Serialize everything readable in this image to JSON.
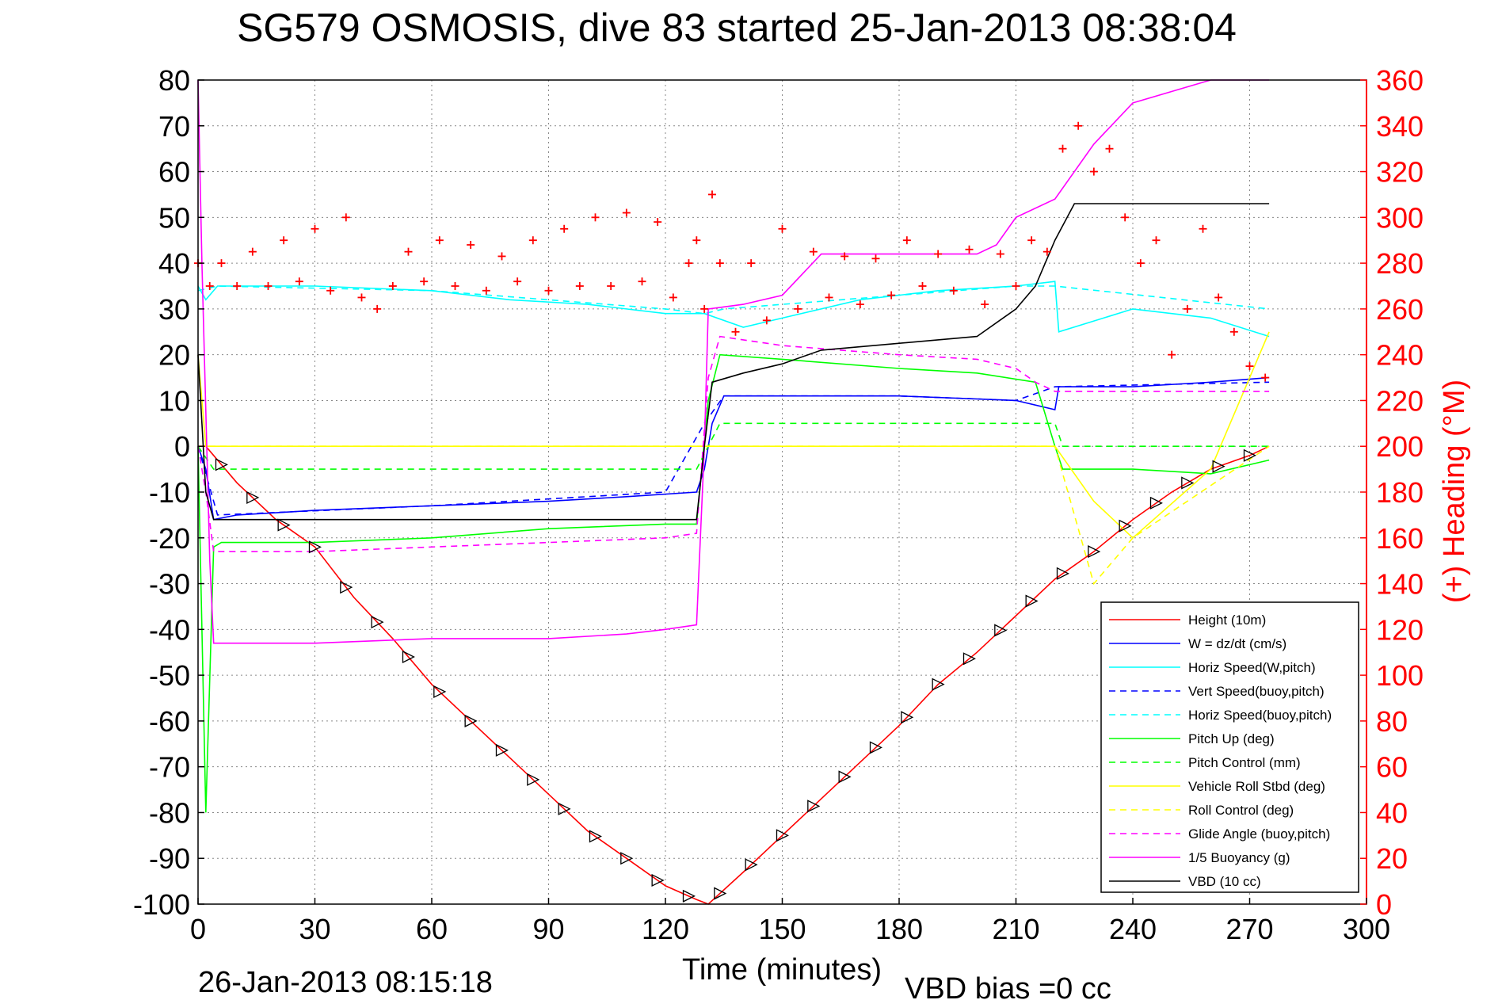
{
  "chart_data": {
    "type": "line",
    "title": "SG579 OSMOSIS, dive 83 started 25-Jan-2013 08:38:04",
    "xlabel": "Time (minutes)",
    "ylabel_right": "(+) Heading (°M)",
    "footer_left": "26-Jan-2013 08:15:18",
    "footer_right": "VBD bias =0 cc",
    "xlim": [
      0,
      300
    ],
    "ylim": [
      -100,
      80
    ],
    "ylim_right": [
      0,
      360
    ],
    "x_ticks": [
      0,
      30,
      60,
      90,
      120,
      150,
      180,
      210,
      240,
      270,
      300
    ],
    "y_ticks": [
      80,
      70,
      60,
      50,
      40,
      30,
      20,
      10,
      0,
      -10,
      -20,
      -30,
      -40,
      -50,
      -60,
      -70,
      -80,
      -90,
      -100
    ],
    "y_right_ticks": [
      360,
      340,
      320,
      300,
      280,
      260,
      240,
      220,
      200,
      180,
      160,
      140,
      120,
      100,
      80,
      60,
      40,
      20,
      0
    ],
    "grid": true,
    "legend_position": "bottom-right",
    "colors": {
      "height": "#ff0000",
      "w": "#0000ff",
      "horiz_w": "#00ffff",
      "vert_buoy": "#0000ff",
      "horiz_buoy": "#00ffff",
      "pitch": "#00ff00",
      "pitch_ctrl": "#00ff00",
      "roll": "#ffff00",
      "roll_ctrl": "#ffff00",
      "glide": "#ff00ff",
      "buoy": "#ff00ff",
      "vbd": "#000000",
      "heading": "#ff0000"
    },
    "series": [
      {
        "key": "height",
        "name": "Height (10m)",
        "style": "solid",
        "x": [
          0,
          2,
          10,
          20,
          30,
          40,
          50,
          60,
          70,
          80,
          90,
          100,
          110,
          120,
          128,
          131,
          140,
          150,
          160,
          170,
          180,
          190,
          200,
          210,
          220,
          230,
          240,
          250,
          260,
          270,
          275
        ],
        "y": [
          0,
          0,
          -8,
          -16,
          -22,
          -33,
          -42,
          -52,
          -60,
          -68,
          -76,
          -84,
          -90,
          -96,
          -99,
          -100,
          -93,
          -85,
          -77,
          -69,
          -61,
          -52,
          -45,
          -37,
          -29,
          -23,
          -16,
          -10,
          -5,
          -2,
          0
        ]
      },
      {
        "key": "w",
        "name": "W = dz/dt (cm/s)",
        "style": "solid",
        "x": [
          0,
          2,
          4,
          10,
          30,
          60,
          90,
          110,
          128,
          130,
          132,
          135,
          150,
          180,
          210,
          220,
          221,
          240,
          260,
          275
        ],
        "y": [
          0,
          -5,
          -16,
          -15,
          -14,
          -13,
          -12,
          -11,
          -10,
          -5,
          5,
          11,
          11,
          11,
          10,
          8,
          13,
          13,
          14,
          15
        ]
      },
      {
        "key": "horiz_w",
        "name": "Horiz Speed(W,pitch)",
        "style": "solid",
        "x": [
          0,
          2,
          5,
          30,
          60,
          80,
          100,
          120,
          130,
          140,
          150,
          170,
          190,
          210,
          220,
          221,
          240,
          260,
          275
        ],
        "y": [
          35,
          32,
          35,
          35,
          34,
          32,
          31,
          29,
          29,
          26,
          28,
          32,
          34,
          35,
          36,
          25,
          30,
          28,
          24
        ]
      },
      {
        "key": "vert_buoy",
        "name": "Vert Speed(buoy,pitch)",
        "style": "dashed",
        "x": [
          0,
          5,
          60,
          120,
          130,
          135,
          180,
          210,
          220,
          275
        ],
        "y": [
          0,
          -15,
          -13,
          -10,
          5,
          11,
          11,
          10,
          13,
          14
        ]
      },
      {
        "key": "horiz_buoy",
        "name": "Horiz Speed(buoy,pitch)",
        "style": "dashed",
        "x": [
          0,
          5,
          60,
          120,
          130,
          135,
          180,
          210,
          220,
          275
        ],
        "y": [
          34,
          35,
          34,
          30,
          29,
          30,
          33,
          35,
          35,
          30
        ]
      },
      {
        "key": "pitch",
        "name": "Pitch Up (deg)",
        "style": "solid",
        "x": [
          0,
          2,
          4,
          6,
          30,
          60,
          90,
          120,
          128,
          131,
          134,
          150,
          180,
          200,
          215,
          220,
          222,
          240,
          260,
          275
        ],
        "y": [
          0,
          -80,
          -22,
          -21,
          -21,
          -20,
          -18,
          -17,
          -17,
          10,
          20,
          19,
          17,
          16,
          14,
          0,
          -5,
          -5,
          -6,
          -3
        ]
      },
      {
        "key": "pitch_ctrl",
        "name": "Pitch Control (mm)",
        "style": "dashed",
        "x": [
          0,
          4,
          128,
          131,
          134,
          220,
          222,
          275
        ],
        "y": [
          0,
          -5,
          -5,
          0,
          5,
          5,
          0,
          0
        ]
      },
      {
        "key": "roll",
        "name": "Vehicle Roll Stbd (deg)",
        "style": "solid",
        "x": [
          0,
          2,
          30,
          60,
          90,
          120,
          130,
          131,
          160,
          190,
          220,
          230,
          240,
          260,
          275
        ],
        "y": [
          20,
          0,
          0,
          0,
          0,
          0,
          0,
          0,
          0,
          0,
          0,
          -12,
          -20,
          -5,
          25
        ]
      },
      {
        "key": "roll_ctrl",
        "name": "Roll Control (deg)",
        "style": "dashed",
        "x": [
          0,
          2,
          30,
          60,
          90,
          120,
          130,
          160,
          190,
          220,
          230,
          240,
          275
        ],
        "y": [
          0,
          0,
          0,
          0,
          0,
          0,
          0,
          0,
          0,
          0,
          -30,
          -20,
          0
        ]
      },
      {
        "key": "glide",
        "name": "Glide Angle (buoy,pitch)",
        "style": "dashed",
        "x": [
          0,
          2,
          4,
          30,
          60,
          90,
          120,
          128,
          131,
          134,
          150,
          180,
          200,
          210,
          215,
          220,
          240,
          275
        ],
        "y": [
          0,
          -10,
          -23,
          -23,
          -22,
          -21,
          -20,
          -19,
          15,
          24,
          22,
          20,
          19,
          17,
          14,
          12,
          12,
          12
        ]
      },
      {
        "key": "buoy",
        "name": "1/5 Buoyancy (g)",
        "style": "solid",
        "x": [
          0,
          1,
          3,
          4,
          30,
          60,
          90,
          110,
          120,
          128,
          130,
          131,
          140,
          150,
          160,
          200,
          205,
          210,
          220,
          230,
          240,
          260,
          275
        ],
        "y": [
          80,
          40,
          -25,
          -43,
          -43,
          -42,
          -42,
          -41,
          -40,
          -39,
          0,
          30,
          31,
          33,
          42,
          42,
          44,
          50,
          54,
          66,
          75,
          80,
          80
        ]
      },
      {
        "key": "vbd",
        "name": "VBD (10 cc)",
        "style": "solid",
        "x": [
          0,
          2,
          4,
          128,
          130,
          132,
          140,
          150,
          160,
          200,
          210,
          215,
          220,
          225,
          275
        ],
        "y": [
          20,
          -10,
          -16,
          -16,
          0,
          14,
          16,
          18,
          21,
          24,
          30,
          35,
          45,
          53,
          53
        ]
      }
    ],
    "heading": {
      "name": "(+) Heading (°M)",
      "x": [
        0,
        3,
        6,
        10,
        14,
        18,
        22,
        26,
        30,
        34,
        38,
        42,
        46,
        50,
        54,
        58,
        62,
        66,
        70,
        74,
        78,
        82,
        86,
        90,
        94,
        98,
        102,
        106,
        110,
        114,
        118,
        122,
        126,
        128,
        130,
        132,
        134,
        138,
        142,
        146,
        150,
        154,
        158,
        162,
        166,
        170,
        174,
        178,
        182,
        186,
        190,
        194,
        198,
        202,
        206,
        210,
        214,
        218,
        222,
        226,
        230,
        234,
        238,
        242,
        246,
        250,
        254,
        258,
        262,
        266,
        270,
        274
      ],
      "y": [
        280,
        270,
        280,
        270,
        285,
        270,
        290,
        272,
        295,
        268,
        300,
        265,
        260,
        270,
        285,
        272,
        290,
        270,
        288,
        268,
        283,
        272,
        290,
        268,
        295,
        270,
        300,
        270,
        302,
        272,
        298,
        265,
        280,
        290,
        260,
        310,
        280,
        250,
        280,
        255,
        295,
        260,
        285,
        265,
        283,
        262,
        282,
        266,
        290,
        270,
        284,
        268,
        286,
        262,
        284,
        270,
        290,
        285,
        330,
        340,
        320,
        330,
        300,
        280,
        290,
        240,
        260,
        295,
        265,
        250,
        235,
        230
      ]
    }
  }
}
